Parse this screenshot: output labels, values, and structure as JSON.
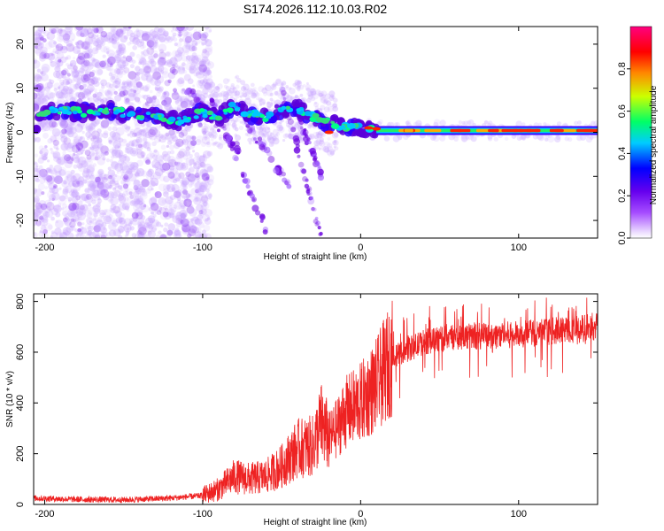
{
  "figure": {
    "title": "S174.2026.112.10.03.R02"
  },
  "chart_data": [
    {
      "type": "heatmap",
      "panel": "spectrogram",
      "xlabel": "Height of straight line (km)",
      "ylabel": "Frequency (Hz)",
      "xlim": [
        -207,
        150
      ],
      "ylim": [
        -24,
        24
      ],
      "xticks": [
        -200,
        -100,
        0,
        100
      ],
      "xtick_labels": [
        "-200",
        "-100",
        "0",
        "100"
      ],
      "yticks": [
        -20,
        -10,
        0,
        10,
        20
      ],
      "ytick_labels": [
        "-20",
        "-10",
        "0",
        "10",
        "20"
      ],
      "main_band": [
        {
          "x": -205,
          "y": 4.5
        },
        {
          "x": -190,
          "y": 5.0
        },
        {
          "x": -175,
          "y": 4.5
        },
        {
          "x": -160,
          "y": 5.0
        },
        {
          "x": -145,
          "y": 4.0
        },
        {
          "x": -130,
          "y": 3.5
        },
        {
          "x": -115,
          "y": 2.5
        },
        {
          "x": -100,
          "y": 4.5
        },
        {
          "x": -90,
          "y": 3.5
        },
        {
          "x": -80,
          "y": 6.0
        },
        {
          "x": -70,
          "y": 4.0
        },
        {
          "x": -60,
          "y": 3.5
        },
        {
          "x": -50,
          "y": 5.0
        },
        {
          "x": -40,
          "y": 5.5
        },
        {
          "x": -30,
          "y": 3.5
        },
        {
          "x": -20,
          "y": 2.0
        },
        {
          "x": -10,
          "y": 1.5
        },
        {
          "x": 0,
          "y": 1.0
        },
        {
          "x": 10,
          "y": 0.5
        },
        {
          "x": 150,
          "y": 0.2
        }
      ],
      "colorbar": {
        "label": "Normalized spectral amplitude",
        "range": [
          0,
          1
        ],
        "ticks": [
          0.0,
          0.2,
          0.4,
          0.6,
          0.8
        ],
        "tick_labels": [
          "0.0",
          "0.2",
          "0.4",
          "0.6",
          "0.8"
        ]
      }
    },
    {
      "type": "line",
      "panel": "snr",
      "xlabel": "Height of straight line (km)",
      "ylabel": "SNR (10 * v/v)",
      "xlim": [
        -207,
        150
      ],
      "ylim": [
        0,
        830
      ],
      "xticks": [
        -200,
        -100,
        0,
        100
      ],
      "xtick_labels": [
        "-200",
        "-100",
        "0",
        "100"
      ],
      "yticks": [
        0,
        200,
        400,
        600,
        800
      ],
      "ytick_labels": [
        "0",
        "200",
        "400",
        "600",
        "800"
      ],
      "series": [
        {
          "name": "SNR",
          "color": "#ee2222",
          "trend": [
            {
              "x": -207,
              "y": 25
            },
            {
              "x": -180,
              "y": 20
            },
            {
              "x": -150,
              "y": 18
            },
            {
              "x": -120,
              "y": 25
            },
            {
              "x": -100,
              "y": 35
            },
            {
              "x": -90,
              "y": 60
            },
            {
              "x": -80,
              "y": 110
            },
            {
              "x": -70,
              "y": 100
            },
            {
              "x": -60,
              "y": 110
            },
            {
              "x": -50,
              "y": 150
            },
            {
              "x": -40,
              "y": 220
            },
            {
              "x": -30,
              "y": 230
            },
            {
              "x": -25,
              "y": 320
            },
            {
              "x": -20,
              "y": 260
            },
            {
              "x": -15,
              "y": 300
            },
            {
              "x": -10,
              "y": 360
            },
            {
              "x": 0,
              "y": 400
            },
            {
              "x": 10,
              "y": 470
            },
            {
              "x": 20,
              "y": 580
            },
            {
              "x": 40,
              "y": 640
            },
            {
              "x": 60,
              "y": 660
            },
            {
              "x": 100,
              "y": 670
            },
            {
              "x": 150,
              "y": 700
            }
          ]
        }
      ]
    }
  ],
  "colors": {
    "line": "#ee2222",
    "scatter": "#8a3cff",
    "colormap": [
      "#e6d9ff",
      "#8800ff",
      "#0000ff",
      "#00ccff",
      "#00ff66",
      "#ccff00",
      "#ff8800",
      "#ff0000",
      "#ff0080"
    ]
  }
}
